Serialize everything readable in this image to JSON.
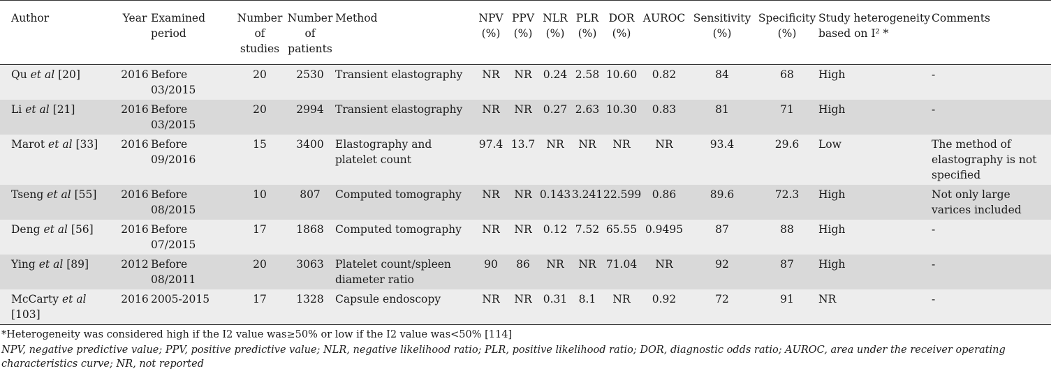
{
  "headers": {
    "author": "Author",
    "year": "Year",
    "examined": "Examined period",
    "studies": "Number of studies",
    "patients": "Number of patients",
    "method": "Method",
    "npv": "NPV (%)",
    "ppv": "PPV (%)",
    "nlr": "NLR (%)",
    "plr": "PLR (%)",
    "dor": "DOR (%)",
    "auroc": "AUROC",
    "sensitivity": "Sensitivity (%)",
    "specificity": "Specificity (%)",
    "heterogeneity": "Study heterogeneity based on I² *",
    "comments": "Comments"
  },
  "rows": [
    {
      "author_name": "Qu ",
      "author_etal": "et al",
      "author_ref": " [20]",
      "year": "2016",
      "period": "Before 03/2015",
      "studies": "20",
      "patients": "2530",
      "method": "Transient elastography",
      "npv": "NR",
      "ppv": "NR",
      "nlr": "0.24",
      "plr": "2.58",
      "dor": "10.60",
      "auroc": "0.82",
      "sens": "84",
      "spec": "68",
      "het": "High",
      "comment": "-"
    },
    {
      "author_name": "Li ",
      "author_etal": "et al",
      "author_ref": " [21]",
      "year": "2016",
      "period": "Before 03/2015",
      "studies": "20",
      "patients": "2994",
      "method": "Transient elastography",
      "npv": "NR",
      "ppv": "NR",
      "nlr": "0.27",
      "plr": "2.63",
      "dor": "10.30",
      "auroc": "0.83",
      "sens": "81",
      "spec": "71",
      "het": "High",
      "comment": "-"
    },
    {
      "author_name": "Marot ",
      "author_etal": "et al",
      "author_ref": " [33]",
      "year": "2016",
      "period": "Before 09/2016",
      "studies": "15",
      "patients": "3400",
      "method": "Elastography and platelet count",
      "npv": "97.4",
      "ppv": "13.7",
      "nlr": "NR",
      "plr": "NR",
      "dor": "NR",
      "auroc": "NR",
      "sens": "93.4",
      "spec": "29.6",
      "het": "Low",
      "comment": "The method of elastography is not specified"
    },
    {
      "author_name": "Tseng ",
      "author_etal": "et al",
      "author_ref": " [55]",
      "year": "2016",
      "period": "Before 08/2015",
      "studies": "10",
      "patients": "807",
      "method": "Computed tomography",
      "npv": "NR",
      "ppv": "NR",
      "nlr": "0.143",
      "plr": "3.241",
      "dor": "22.599",
      "auroc": "0.86",
      "sens": "89.6",
      "spec": "72.3",
      "het": "High",
      "comment": "Not only large varices included"
    },
    {
      "author_name": "Deng ",
      "author_etal": "et al",
      "author_ref": " [56]",
      "year": "2016",
      "period": "Before 07/2015",
      "studies": "17",
      "patients": "1868",
      "method": "Computed tomography",
      "npv": "NR",
      "ppv": "NR",
      "nlr": "0.12",
      "plr": "7.52",
      "dor": "65.55",
      "auroc": "0.9495",
      "sens": "87",
      "spec": "88",
      "het": "High",
      "comment": "-"
    },
    {
      "author_name": "Ying ",
      "author_etal": "et al",
      "author_ref": " [89]",
      "year": "2012",
      "period": "Before 08/2011",
      "studies": "20",
      "patients": "3063",
      "method": "Platelet count/spleen diameter ratio",
      "npv": "90",
      "ppv": "86",
      "nlr": "NR",
      "plr": "NR",
      "dor": "71.04",
      "auroc": "NR",
      "sens": "92",
      "spec": "87",
      "het": "High",
      "comment": "-"
    },
    {
      "author_name": "McCarty ",
      "author_etal": "et al",
      "author_ref": " [103]",
      "year": "2016",
      "period": "2005-2015",
      "studies": "17",
      "patients": "1328",
      "method": "Capsule endoscopy",
      "npv": "NR",
      "ppv": "NR",
      "nlr": "0.31",
      "plr": "8.1",
      "dor": "NR",
      "auroc": "0.92",
      "sens": "72",
      "spec": "91",
      "het": "NR",
      "comment": "-"
    }
  ],
  "footnotes": {
    "heterogeneity": "*Heterogeneity was considered high if the I2 value was≥50% or low if the I2 value was<50% [114]",
    "abbreviations": "NPV, negative predictive value; PPV, positive predictive value; NLR, negative likelihood ratio; PLR, positive likelihood ratio; DOR, diagnostic odds ratio; AUROC, area under the receiver operating characteristics curve; NR, not reported"
  }
}
